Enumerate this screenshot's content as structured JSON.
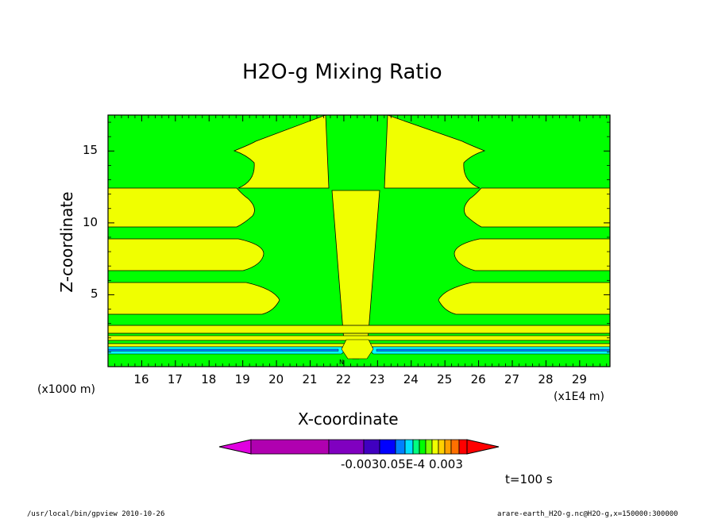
{
  "chart_data": {
    "type": "contour",
    "title": "H2O-g Mixing Ratio",
    "xlabel": "X-coordinate",
    "ylabel": "Z-coordinate",
    "x_unit": "(x1E4 m)",
    "y_unit": "(x1000 m)",
    "x_ticks": [
      "16",
      "17",
      "18",
      "19",
      "20",
      "21",
      "22",
      "23",
      "24",
      "25",
      "26",
      "27",
      "28",
      "29"
    ],
    "y_ticks": [
      "5",
      "10",
      "15"
    ],
    "xlim": [
      15.0,
      29.9
    ],
    "ylim": [
      0.0,
      17.5
    ],
    "fill_colors": {
      "low_band": "#00ff00",
      "high_band": "#f0ff00",
      "levels_near_surface": [
        "#00ffff",
        "#0080ff",
        "#00ff00"
      ]
    },
    "yellow_bands_z": [
      [
        1.6,
        2.5
      ],
      [
        3.0,
        4.5
      ],
      [
        4.8,
        7.9
      ],
      [
        8.4,
        11.2
      ],
      [
        12.5,
        17.5
      ]
    ],
    "colorbar": {
      "colors": [
        "#e000e0",
        "#b000b0",
        "#8000c0",
        "#4000c0",
        "#0000ff",
        "#0080ff",
        "#00e0ff",
        "#00ff80",
        "#00ff00",
        "#80ff00",
        "#f0ff00",
        "#ffd000",
        "#ffa000",
        "#ff7000",
        "#ff0000"
      ],
      "labels_text": "-0.0030.05E-4 0.003"
    },
    "time_label": "t=100 s",
    "near_surface_marker": "N"
  },
  "footer": {
    "left": "/usr/local/bin/gpview  2010-10-26",
    "right": "arare-earth_H2O-g.nc@H2O-g,x=150000:300000"
  }
}
